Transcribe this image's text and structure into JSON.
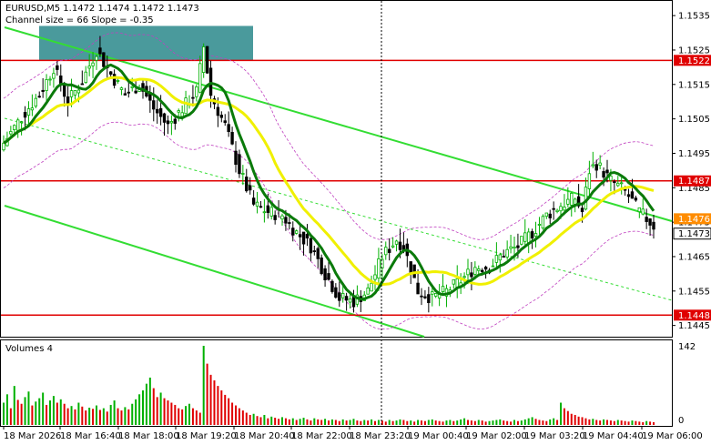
{
  "header": {
    "symbol_line": "EURUSD,M5  1.1472 1.1474 1.1472 1.1473",
    "channel_line": "Channel size = 66 Slope = -0.35"
  },
  "volume_panel": {
    "title": "Volumes 4"
  },
  "colors": {
    "bull": "#00b000",
    "bear": "#000000",
    "ma_fast": "#0a7a0a",
    "ma_slow": "#f0f000",
    "channel": "#33dd33",
    "level": "#e00000",
    "envelope": "#c040c0",
    "volume_bull": "#00b000",
    "volume_bear": "#e00000",
    "rect": "#4a9a9c"
  },
  "chart_data": {
    "type": "candlestick",
    "price_axis": {
      "min": 1.1442,
      "max": 1.1539,
      "ticks": [
        "1.1535",
        "1.1525",
        "1.1515",
        "1.1505",
        "1.1495",
        "1.1485",
        "1.1475",
        "1.1465",
        "1.1455",
        "1.1445"
      ]
    },
    "levels": [
      {
        "price": 1.1522,
        "label": "1.1522"
      },
      {
        "price": 1.1487,
        "label": "1.1487"
      },
      {
        "price": 1.1448,
        "label": "1.1448"
      }
    ],
    "price_tags": [
      {
        "price": 1.1476,
        "label": "1.1476",
        "color": "#ff8c00"
      },
      {
        "price": 1.1473,
        "label": "1.1473",
        "color": "#ffffff"
      }
    ],
    "time_labels": [
      "18 Mar 2026",
      "18 Mar 16:40",
      "18 Mar 18:00",
      "18 Mar 19:20",
      "18 Mar 20:40",
      "18 Mar 22:00",
      "18 Mar 23:20",
      "19 Mar 00:40",
      "19 Mar 02:00",
      "19 Mar 03:20",
      "19 Mar 04:40",
      "19 Mar 06:00"
    ],
    "volume_axis": {
      "max_label": "142",
      "min_label": "0"
    },
    "anchor_closes": [
      [
        0,
        1.1498
      ],
      [
        6,
        1.1507
      ],
      [
        10,
        1.1512
      ],
      [
        14,
        1.152
      ],
      [
        18,
        1.151
      ],
      [
        22,
        1.1516
      ],
      [
        26,
        1.1525
      ],
      [
        30,
        1.1518
      ],
      [
        34,
        1.1512
      ],
      [
        38,
        1.1515
      ],
      [
        42,
        1.1508
      ],
      [
        46,
        1.1503
      ],
      [
        50,
        1.1508
      ],
      [
        54,
        1.1513
      ],
      [
        56,
        1.1526
      ],
      [
        58,
        1.1512
      ],
      [
        62,
        1.1503
      ],
      [
        66,
        1.149
      ],
      [
        70,
        1.148
      ],
      [
        74,
        1.1478
      ],
      [
        78,
        1.1477
      ],
      [
        82,
        1.1472
      ],
      [
        86,
        1.1468
      ],
      [
        90,
        1.146
      ],
      [
        94,
        1.1453
      ],
      [
        98,
        1.1452
      ],
      [
        102,
        1.1455
      ],
      [
        106,
        1.1465
      ],
      [
        110,
        1.147
      ],
      [
        112,
        1.1468
      ],
      [
        116,
        1.1455
      ],
      [
        120,
        1.1453
      ],
      [
        124,
        1.1455
      ],
      [
        128,
        1.1458
      ],
      [
        132,
        1.1462
      ],
      [
        136,
        1.1462
      ],
      [
        140,
        1.1466
      ],
      [
        144,
        1.1468
      ],
      [
        148,
        1.1472
      ],
      [
        152,
        1.1477
      ],
      [
        156,
        1.148
      ],
      [
        160,
        1.1482
      ],
      [
        162,
        1.1478
      ],
      [
        164,
        1.149
      ],
      [
        166,
        1.1492
      ],
      [
        170,
        1.1487
      ],
      [
        174,
        1.1484
      ],
      [
        178,
        1.1478
      ],
      [
        182,
        1.1474
      ]
    ],
    "volumes": [
      40,
      55,
      30,
      70,
      45,
      38,
      50,
      60,
      35,
      42,
      48,
      58,
      36,
      44,
      52,
      40,
      46,
      38,
      30,
      34,
      28,
      40,
      33,
      26,
      31,
      29,
      35,
      27,
      30,
      24,
      36,
      44,
      30,
      26,
      32,
      28,
      38,
      46,
      55,
      62,
      74,
      85,
      66,
      50,
      58,
      48,
      44,
      40,
      36,
      30,
      28,
      34,
      38,
      30,
      26,
      22,
      142,
      110,
      90,
      80,
      70,
      62,
      54,
      48,
      40,
      35,
      30,
      26,
      22,
      18,
      20,
      16,
      14,
      18,
      12,
      15,
      13,
      11,
      14,
      12,
      10,
      12,
      9,
      11,
      13,
      10,
      8,
      12,
      10,
      9,
      11,
      8,
      10,
      9,
      7,
      10,
      8,
      9,
      11,
      8,
      7,
      9,
      8,
      10,
      7,
      9,
      8,
      6,
      9,
      7,
      8,
      10,
      9,
      7,
      8,
      6,
      9,
      8,
      7,
      9,
      10,
      8,
      7,
      6,
      8,
      9,
      7,
      8,
      10,
      12,
      9,
      8,
      7,
      9,
      8,
      6,
      7,
      8,
      9,
      10,
      8,
      7,
      6,
      9,
      7,
      8,
      10,
      12,
      14,
      11,
      9,
      8,
      7,
      10,
      12,
      9,
      40,
      30,
      25,
      20,
      18,
      15,
      14,
      12,
      10,
      11,
      9,
      8,
      10,
      9,
      8,
      7,
      9,
      8,
      7,
      6,
      8,
      7,
      6,
      5,
      7,
      6,
      5,
      4
    ]
  }
}
